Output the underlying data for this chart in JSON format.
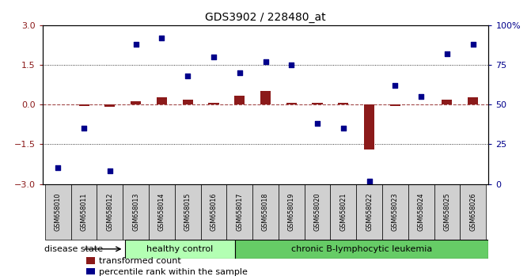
{
  "title": "GDS3902 / 228480_at",
  "samples": [
    "GSM658010",
    "GSM658011",
    "GSM658012",
    "GSM658013",
    "GSM658014",
    "GSM658015",
    "GSM658016",
    "GSM658017",
    "GSM658018",
    "GSM658019",
    "GSM658020",
    "GSM658021",
    "GSM658022",
    "GSM658023",
    "GSM658024",
    "GSM658025",
    "GSM658026"
  ],
  "transformed_count": [
    0.0,
    -0.05,
    -0.08,
    0.12,
    0.28,
    0.18,
    0.08,
    0.32,
    0.5,
    0.06,
    0.08,
    0.06,
    -1.7,
    -0.04,
    0.0,
    0.18,
    0.28
  ],
  "percentile_rank": [
    10,
    35,
    8,
    88,
    92,
    68,
    80,
    70,
    77,
    75,
    38,
    35,
    2,
    62,
    55,
    82,
    88
  ],
  "n_healthy": 5,
  "bar_color": "#8B1A1A",
  "dot_color": "#00008B",
  "ylim_left": [
    -3,
    3
  ],
  "ylim_right": [
    0,
    100
  ],
  "yticks_left": [
    -3,
    -1.5,
    0,
    1.5,
    3
  ],
  "yticks_right": [
    0,
    25,
    50,
    75,
    100
  ],
  "healthy_color": "#b3ffb3",
  "leukemia_color": "#66cc66",
  "sample_box_color": "#d0d0d0",
  "legend_red": "transformed count",
  "legend_blue": "percentile rank within the sample",
  "disease_label": "disease state"
}
